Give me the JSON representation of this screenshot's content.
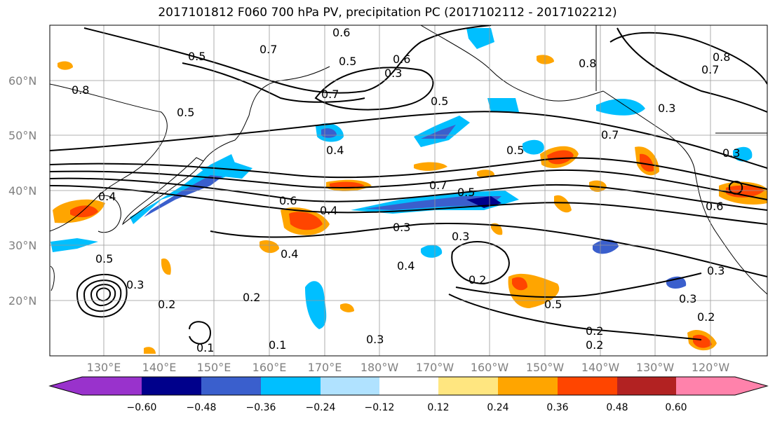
{
  "title": "2017101812 F060 700 hPa PV, precipitation PC (2017102112 - 2017102212)",
  "lat_labels": [
    "60°N",
    "50°N",
    "40°N",
    "30°N",
    "20°N"
  ],
  "lon_labels": [
    "130°E",
    "140°E",
    "150°E",
    "160°E",
    "170°E",
    "180°W",
    "170°W",
    "160°W",
    "150°W",
    "140°W",
    "130°W",
    "120°W"
  ],
  "contour_labels": [
    "0.6",
    "0.7",
    "0.5",
    "0.8",
    "0.5",
    "0.8",
    "0.7",
    "0.3",
    "0.7",
    "0.5",
    "0.3",
    "0.5",
    "0.4",
    "0.7",
    "0.5",
    "0.3",
    "0.4",
    "0.6",
    "0.4",
    "0.7",
    "0.5",
    "0.3",
    "0.3",
    "0.4",
    "0.2",
    "0.5",
    "0.3",
    "0.2",
    "0.2",
    "0.2",
    "0.3",
    "0.2",
    "0.2",
    "0.6",
    "0.3",
    "0.3",
    "0.4",
    "0.5",
    "0.8",
    "0.1",
    "0.1",
    "0.6"
  ],
  "colorbar": {
    "tick_labels": [
      "−0.60",
      "−0.48",
      "−0.36",
      "−0.24",
      "−0.12",
      "0.12",
      "0.24",
      "0.36",
      "0.48",
      "0.60"
    ],
    "colors": [
      "#9932cc",
      "#00008b",
      "#3a5fcd",
      "#00bfff",
      "#b0e2ff",
      "#ffffff",
      "#ffe680",
      "#ffa500",
      "#ff4500",
      "#b22222",
      "#ff82ab"
    ]
  }
}
